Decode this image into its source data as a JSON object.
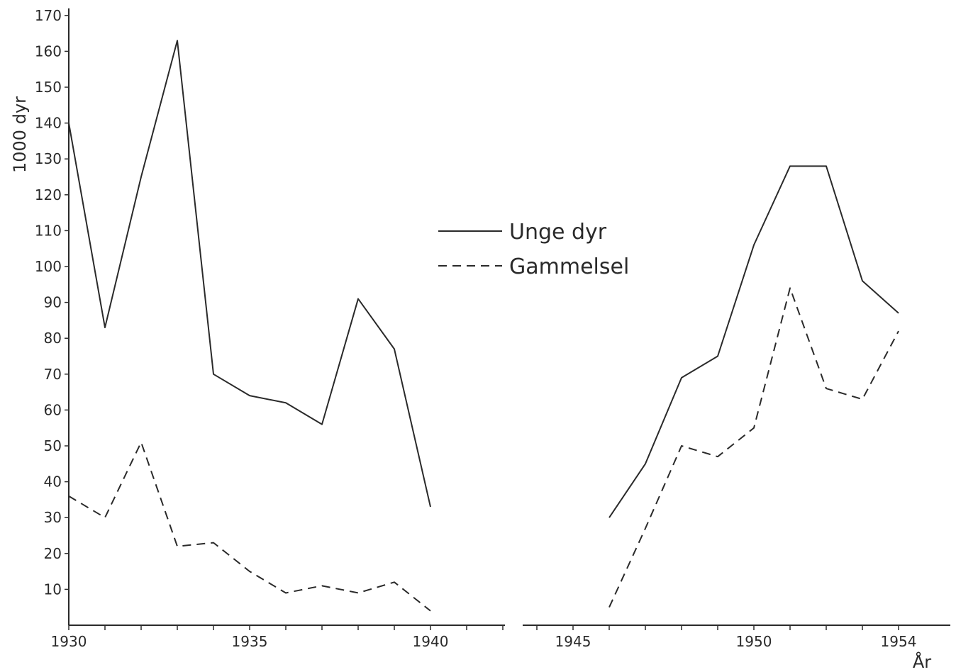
{
  "chart_data": {
    "type": "line",
    "title": "",
    "ylabel": "1000 dyr",
    "xlabel": "År",
    "ylim": [
      0,
      170
    ],
    "yticks": [
      10,
      20,
      30,
      40,
      50,
      60,
      70,
      80,
      90,
      100,
      110,
      120,
      130,
      140,
      150,
      160,
      170
    ],
    "xlim": [
      1930,
      1954
    ],
    "xtick_labels": [
      "1930",
      "1935",
      "1940",
      "1945",
      "1950",
      "1954"
    ],
    "x_axis_break_between": [
      1942,
      1944
    ],
    "grid": false,
    "legend_position": "center",
    "series": [
      {
        "name": "Unge dyr",
        "style": "solid",
        "segments": [
          {
            "x": [
              1930,
              1931,
              1932,
              1933,
              1934,
              1935,
              1936,
              1937,
              1938,
              1939,
              1940
            ],
            "y": [
              140,
              83,
              125,
              163,
              70,
              64,
              62,
              56,
              91,
              77,
              33
            ]
          },
          {
            "x": [
              1946,
              1947,
              1948,
              1949,
              1950,
              1951,
              1952,
              1953,
              1954
            ],
            "y": [
              30,
              45,
              69,
              75,
              106,
              128,
              128,
              96,
              87
            ]
          }
        ]
      },
      {
        "name": "Gammelsel",
        "style": "dashed",
        "segments": [
          {
            "x": [
              1930,
              1931,
              1932,
              1933,
              1934,
              1935,
              1936,
              1937,
              1938,
              1939,
              1940
            ],
            "y": [
              36,
              30,
              51,
              22,
              23,
              15,
              9,
              11,
              9,
              12,
              4
            ]
          },
          {
            "x": [
              1946,
              1947,
              1948,
              1949,
              1950,
              1951,
              1952,
              1953,
              1954
            ],
            "y": [
              5,
              27,
              50,
              47,
              55,
              94,
              66,
              63,
              82
            ]
          }
        ]
      }
    ]
  },
  "colors": {
    "ink": "#2a2a2a",
    "background": "#ffffff"
  }
}
